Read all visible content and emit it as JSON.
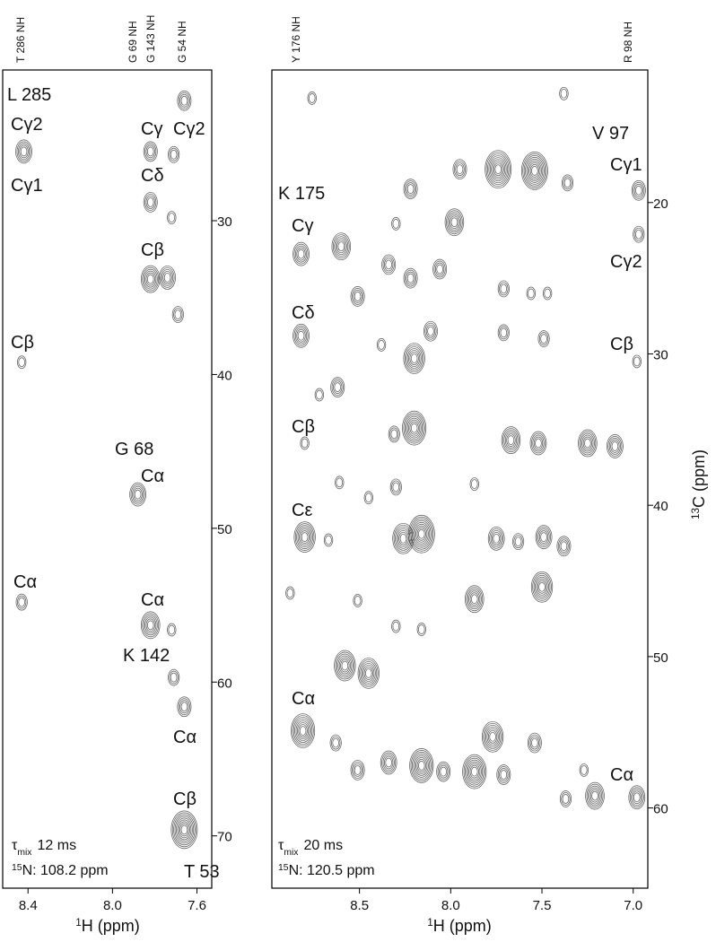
{
  "chart_data": [
    {
      "type": "contour",
      "top_labels": [
        "T 286 NH",
        "G 69 NH",
        "G 143 NH",
        "G 54 NH"
      ],
      "annotations": [
        "L 285",
        "Cγ2",
        "Cγ1",
        "Cβ",
        "Cα",
        "Cγ",
        "Cγ2",
        "Cδ",
        "Cβ",
        "G 68",
        "Cα",
        "Cα",
        "K 142",
        "Cα",
        "Cβ",
        "T 53"
      ],
      "mix_time": {
        "symbol": "τ",
        "subscript": "mix",
        "text": "12 ms"
      },
      "nitrogen": {
        "sup": "15",
        "text": "N: 108.2 ppm"
      },
      "xlabel": {
        "sup": "1",
        "text": "H (ppm)"
      },
      "xlim": [
        8.52,
        7.53
      ],
      "xticks": [
        8.4,
        {
          "value": 8,
          "label": "8.0"
        },
        7.6
      ],
      "ylim": [
        20.2,
        73.4
      ],
      "yticks": [
        30,
        40,
        50,
        60,
        70
      ],
      "color": "#555555",
      "x": [
        7.66,
        8.42,
        7.82,
        7.71,
        7.82,
        7.72,
        7.82,
        7.74,
        7.69,
        8.43,
        7.88,
        8.43,
        7.82,
        7.72,
        7.71,
        7.66,
        7.66
      ],
      "y": [
        22.2,
        25.5,
        25.5,
        25.7,
        28.8,
        29.8,
        33.8,
        33.7,
        36.1,
        39.2,
        47.8,
        54.8,
        56.3,
        56.6,
        59.7,
        61.6,
        69.6
      ],
      "levels": [
        3,
        4,
        3,
        2,
        3,
        1,
        5,
        4,
        2,
        1,
        4,
        2,
        5,
        1,
        2,
        3,
        8
      ]
    },
    {
      "type": "contour",
      "top_labels": [
        "Y 176 NH",
        "R 98 NH"
      ],
      "annotations": [
        "V 97",
        "Cγ1",
        "Cγ2",
        "Cβ",
        "Cα",
        "K 175",
        "Cγ",
        "Cδ",
        "Cβ",
        "Cε",
        "Cα"
      ],
      "mix_time": {
        "symbol": "τ",
        "subscript": "mix",
        "text": "20 ms"
      },
      "nitrogen": {
        "sup": "15",
        "text": "N: 120.5 ppm"
      },
      "xlabel": {
        "sup": "1",
        "text": "H (ppm)"
      },
      "ylabel": {
        "sup": "13",
        "text": "C (ppm)"
      },
      "xlim": [
        8.98,
        6.92
      ],
      "xticks": [
        8.5,
        {
          "value": 8,
          "label": "8.0"
        },
        7.5,
        {
          "value": 7,
          "label": "7.0"
        }
      ],
      "ylim": [
        11.24,
        65.3
      ],
      "yticks": [
        20,
        30,
        40,
        50,
        60
      ],
      "color": "#555555",
      "x": [
        8.76,
        7.38,
        7.95,
        7.74,
        7.54,
        7.36,
        8.22,
        6.97,
        7.98,
        8.3,
        8.82,
        8.6,
        6.97,
        8.34,
        8.06,
        8.22,
        8.51,
        7.71,
        7.56,
        7.47,
        8.82,
        8.11,
        7.71,
        7.49,
        6.98,
        8.38,
        8.2,
        8.62,
        8.72,
        8.2,
        8.31,
        7.67,
        7.52,
        7.25,
        7.1,
        8.8,
        8.61,
        8.3,
        7.87,
        8.45,
        8.8,
        8.67,
        8.16,
        8.26,
        7.75,
        7.63,
        7.49,
        7.38,
        7.87,
        7.5,
        8.88,
        8.51,
        8.16,
        8.3,
        8.58,
        8.45,
        8.81,
        8.63,
        7.77,
        7.54,
        8.34,
        8.51,
        8.16,
        7.87,
        7.71,
        8.04,
        7.21,
        6.98,
        7.37,
        7.27
      ],
      "y": [
        13.1,
        12.8,
        17.8,
        17.8,
        17.9,
        18.7,
        19.1,
        19.2,
        21.3,
        21.4,
        23.4,
        22.9,
        22.1,
        24.1,
        24.4,
        25.0,
        26.2,
        25.7,
        26.0,
        26.0,
        28.8,
        28.5,
        28.6,
        29.0,
        30.5,
        29.4,
        30.3,
        32.2,
        32.7,
        34.9,
        35.3,
        35.7,
        35.9,
        35.9,
        36.1,
        35.9,
        38.5,
        38.8,
        38.6,
        39.5,
        42.1,
        42.3,
        41.9,
        42.2,
        42.2,
        42.4,
        42.1,
        42.7,
        46.2,
        45.4,
        45.8,
        46.3,
        48.2,
        48.0,
        50.6,
        51.1,
        54.9,
        55.7,
        55.3,
        55.7,
        57.0,
        57.5,
        57.2,
        57.6,
        57.8,
        57.6,
        59.2,
        59.3,
        59.4,
        57.5
      ],
      "levels": [
        1,
        1,
        3,
        8,
        8,
        2,
        3,
        3,
        5,
        1,
        4,
        5,
        2,
        3,
        3,
        3,
        3,
        2,
        1,
        1,
        4,
        3,
        2,
        2,
        1,
        1,
        6,
        3,
        1,
        7,
        2,
        5,
        4,
        5,
        4,
        1,
        1,
        2,
        1,
        1,
        6,
        1,
        8,
        6,
        4,
        2,
        4,
        3,
        5,
        6,
        1,
        1,
        1,
        1,
        6,
        6,
        7,
        2,
        6,
        3,
        4,
        3,
        7,
        7,
        3,
        3,
        5,
        4,
        2,
        1
      ]
    }
  ]
}
